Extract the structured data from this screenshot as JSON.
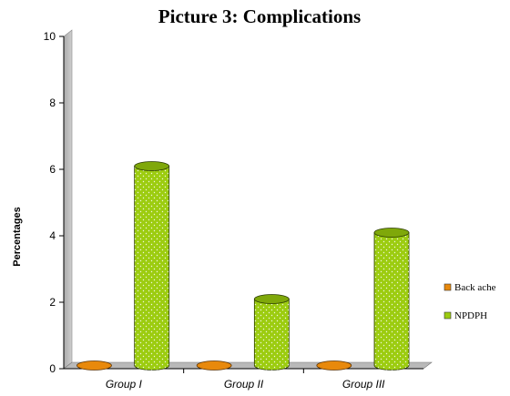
{
  "chart_data": {
    "type": "bar",
    "title": "Picture 3: Complications",
    "xlabel": "",
    "ylabel": "Percentages",
    "ylim": [
      0,
      10
    ],
    "yticks": [
      "0",
      "2",
      "4",
      "6",
      "8",
      "10"
    ],
    "categories": [
      "Group I",
      "Group II",
      "Group III"
    ],
    "series": [
      {
        "name": "Back ache",
        "values": [
          0,
          0,
          0
        ],
        "color": "#e8890c"
      },
      {
        "name": "NPDPH",
        "values": [
          6,
          2,
          4
        ],
        "color": "#9ccc10"
      }
    ],
    "grid": false,
    "legend": "right",
    "style": "3d-cylinder"
  }
}
